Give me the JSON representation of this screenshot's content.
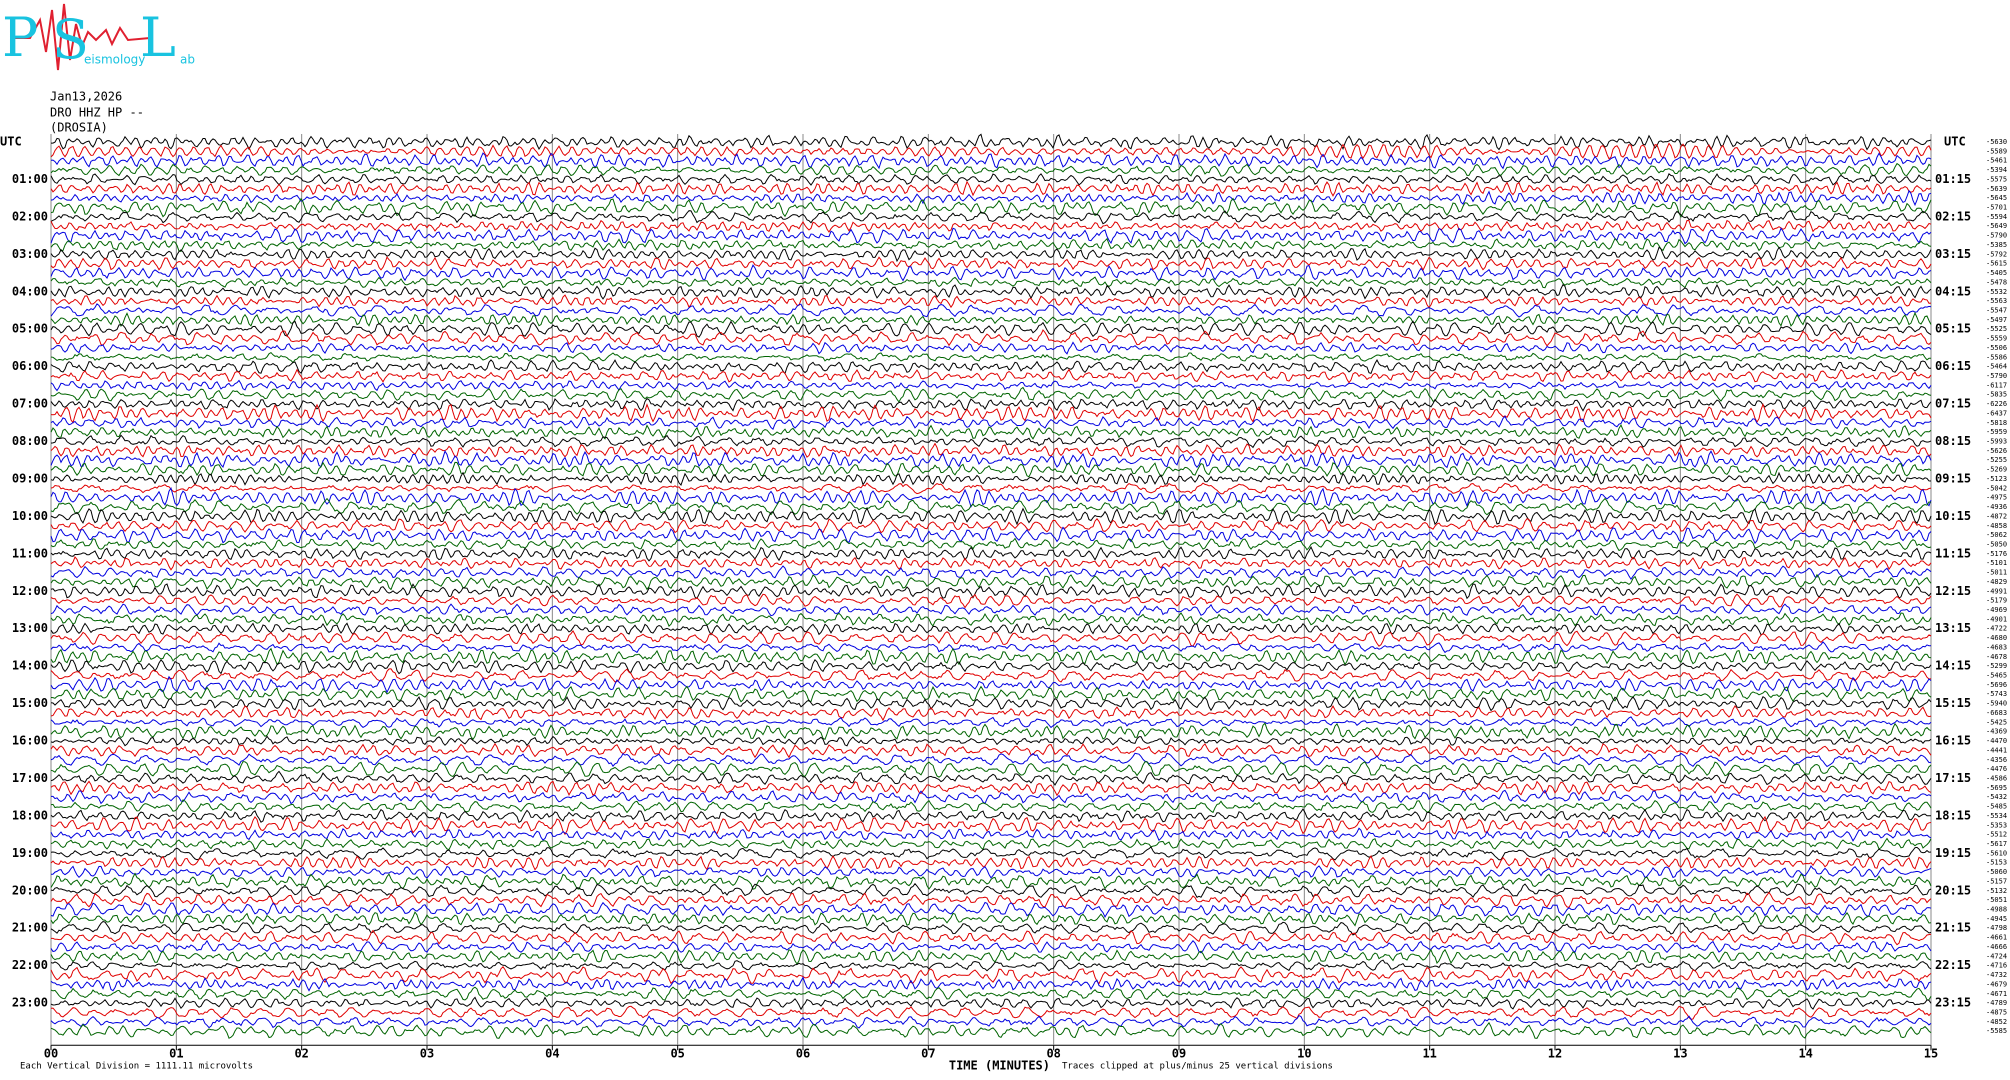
{
  "chart_data": {
    "type": "helicorder",
    "logo": {
      "letters": [
        "P",
        "S",
        "L"
      ],
      "fragments": [
        "eismology",
        "ab"
      ]
    },
    "header": [
      "Jan13,2026",
      "DRO HHZ HP --",
      "(DROSIA)"
    ],
    "time_zone_label": "UTC",
    "hour_labels_left": [
      "01:00",
      "02:00",
      "03:00",
      "04:00",
      "05:00",
      "06:00",
      "07:00",
      "08:00",
      "09:00",
      "10:00",
      "11:00",
      "12:00",
      "13:00",
      "14:00",
      "15:00",
      "16:00",
      "17:00",
      "18:00",
      "19:00",
      "20:00",
      "21:00",
      "22:00",
      "23:00"
    ],
    "hour_labels_right": [
      "01:15",
      "02:15",
      "03:15",
      "04:15",
      "05:15",
      "06:15",
      "07:15",
      "08:15",
      "09:15",
      "10:15",
      "11:15",
      "12:15",
      "13:15",
      "14:15",
      "15:15",
      "16:15",
      "17:15",
      "18:15",
      "19:15",
      "20:15",
      "21:15",
      "22:15",
      "23:15"
    ],
    "line_labels": [
      "-5630",
      "-5589",
      "-5461",
      "-5394",
      "-5575",
      "-5639",
      "-5645",
      "-5701",
      "-5594",
      "-5649",
      "-5790",
      "-5385",
      "-5792",
      "-5615",
      "-5405",
      "-5478",
      "-5532",
      "-5563",
      "-5547",
      "-5497",
      "-5525",
      "-5559",
      "-5506",
      "-5586",
      "-5464",
      "-5790",
      "-6117",
      "-5835",
      "-6226",
      "-6437",
      "-5818",
      "-5959",
      "-5993",
      "-5626",
      "-5255",
      "-5269",
      "-5123",
      "-5042",
      "-4975",
      "-4936",
      "-4872",
      "-4858",
      "-5062",
      "-5050",
      "-5176",
      "-5101",
      "-5011",
      "-4829",
      "-4991",
      "-5179",
      "-4969",
      "-4901",
      "-4722",
      "-4680",
      "-4683",
      "-4678",
      "-5299",
      "-5465",
      "-5696",
      "-5743",
      "-5940",
      "-6683",
      "-5425",
      "-4369",
      "-4470",
      "-4441",
      "-4356",
      "-4476",
      "-4586",
      "-5695",
      "-5432",
      "-5485",
      "-5534",
      "-5353",
      "-5512",
      "-5617",
      "-5610",
      "-5153",
      "-5060",
      "-5157",
      "-5132",
      "-5051",
      "-4988",
      "-4945",
      "-4798",
      "-4661",
      "-4666",
      "-4724",
      "-4716",
      "-4732",
      "-4679",
      "-4671",
      "-4789",
      "-4875",
      "-4852",
      "-5585"
    ],
    "colors": [
      "#000000",
      "#e00000",
      "#0000e0",
      "#006400"
    ],
    "xlim": [
      0,
      15
    ],
    "xticks": [
      {
        "value": 0,
        "label": "00"
      },
      {
        "value": 1,
        "label": "01"
      },
      {
        "value": 2,
        "label": "02"
      },
      {
        "value": 3,
        "label": "03"
      },
      {
        "value": 4,
        "label": "04"
      },
      {
        "value": 5,
        "label": "05"
      },
      {
        "value": 6,
        "label": "06"
      },
      {
        "value": 7,
        "label": "07"
      },
      {
        "value": 8,
        "label": "08"
      },
      {
        "value": 9,
        "label": "09"
      },
      {
        "value": 10,
        "label": "10"
      },
      {
        "value": 11,
        "label": "11"
      },
      {
        "value": 12,
        "label": "12"
      },
      {
        "value": 13,
        "label": "13"
      },
      {
        "value": 14,
        "label": "14"
      },
      {
        "value": 15,
        "label": "15"
      }
    ],
    "grid": true,
    "x_label": "TIME (MINUTES)",
    "footer_left": "Each Vertical Division = 1111.11 microvolts",
    "footer_note": "Traces clipped at plus/minus 25 vertical divisions"
  }
}
